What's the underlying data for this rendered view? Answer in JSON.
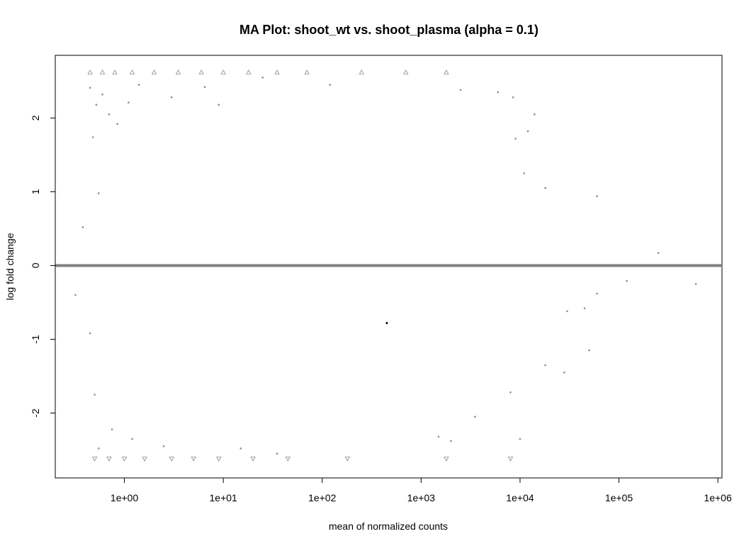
{
  "chart_data": {
    "type": "scatter",
    "title": "MA Plot: shoot_wt vs. shoot_plasma (alpha = 0.1)",
    "xlabel": "mean of normalized counts",
    "ylabel": "log fold change",
    "x_scale": "log10",
    "xlim": [
      0.2,
      1100000
    ],
    "ylim": [
      -2.88,
      2.85
    ],
    "x_ticks": [
      {
        "value": 1,
        "label": "1e+00"
      },
      {
        "value": 10,
        "label": "1e+01"
      },
      {
        "value": 100,
        "label": "1e+02"
      },
      {
        "value": 1000,
        "label": "1e+03"
      },
      {
        "value": 10000,
        "label": "1e+04"
      },
      {
        "value": 100000,
        "label": "1e+05"
      },
      {
        "value": 1000000,
        "label": "1e+06"
      }
    ],
    "y_ticks": [
      {
        "value": 2,
        "label": "2"
      },
      {
        "value": 1,
        "label": "1"
      },
      {
        "value": 0,
        "label": "0"
      },
      {
        "value": -1,
        "label": "-1"
      },
      {
        "value": -2,
        "label": "-2"
      }
    ],
    "grid": false,
    "legend": "none",
    "reference_line": {
      "y": 0,
      "color": "#808080"
    },
    "point_color": "#8a8a8a",
    "highlight_color": "#000000",
    "clipped_marker": "triangle",
    "clipped_upper_y": 2.62,
    "clipped_lower_y": -2.62,
    "series": [
      {
        "values": [
          {
            "x": 0.38,
            "y": 0.52
          },
          {
            "x": 0.45,
            "y": 2.41
          },
          {
            "x": 0.48,
            "y": 1.74
          },
          {
            "x": 0.52,
            "y": 2.18
          },
          {
            "x": 0.55,
            "y": 0.98
          },
          {
            "x": 0.6,
            "y": 2.32
          },
          {
            "x": 0.7,
            "y": 2.05
          },
          {
            "x": 0.85,
            "y": 1.92
          },
          {
            "x": 1.1,
            "y": 2.21
          },
          {
            "x": 1.4,
            "y": 2.45
          },
          {
            "x": 3.0,
            "y": 2.28
          },
          {
            "x": 6.5,
            "y": 2.42
          },
          {
            "x": 9.0,
            "y": 2.18
          },
          {
            "x": 25,
            "y": 2.55
          },
          {
            "x": 120,
            "y": 2.45
          },
          {
            "x": 2500,
            "y": 2.38
          },
          {
            "x": 6000,
            "y": 2.35
          },
          {
            "x": 8500,
            "y": 2.28
          },
          {
            "x": 14000,
            "y": 2.05
          },
          {
            "x": 12000,
            "y": 1.82
          },
          {
            "x": 9000,
            "y": 1.72
          },
          {
            "x": 11000,
            "y": 1.25
          },
          {
            "x": 60000,
            "y": 0.94
          },
          {
            "x": 18000,
            "y": 1.05
          },
          {
            "x": 250000,
            "y": 0.17
          },
          {
            "x": 120000,
            "y": -0.21
          },
          {
            "x": 600000,
            "y": -0.25
          },
          {
            "x": 60000,
            "y": -0.38
          },
          {
            "x": 30000,
            "y": -0.62
          },
          {
            "x": 45000,
            "y": -0.58
          },
          {
            "x": 50000,
            "y": -1.15
          },
          {
            "x": 28000,
            "y": -1.45
          },
          {
            "x": 18000,
            "y": -1.35
          },
          {
            "x": 8000,
            "y": -1.72
          },
          {
            "x": 3500,
            "y": -2.05
          },
          {
            "x": 10000,
            "y": -2.35
          },
          {
            "x": 0.32,
            "y": -0.4
          },
          {
            "x": 0.45,
            "y": -0.92
          },
          {
            "x": 0.5,
            "y": -1.75
          },
          {
            "x": 0.55,
            "y": -2.48
          },
          {
            "x": 0.75,
            "y": -2.22
          },
          {
            "x": 1.2,
            "y": -2.35
          },
          {
            "x": 2.5,
            "y": -2.45
          },
          {
            "x": 15,
            "y": -2.48
          },
          {
            "x": 35,
            "y": -2.55
          },
          {
            "x": 2000,
            "y": -2.38
          },
          {
            "x": 1500,
            "y": -2.32
          },
          {
            "x": 450,
            "y": -0.78
          }
        ]
      }
    ]
  }
}
